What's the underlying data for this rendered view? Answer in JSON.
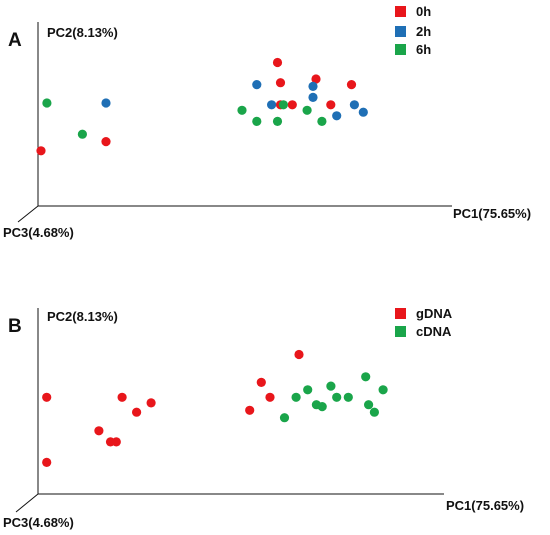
{
  "chart_data": [
    {
      "type": "scatter",
      "panel_label": "A",
      "xlabel": "PC1(75.65%)",
      "ylabel": "PC2(8.13%)",
      "zlabel": "PC3(4.68%)",
      "legend_position": "top-right",
      "grid": false,
      "series": [
        {
          "name": "0h",
          "color": "#e8161b",
          "points": [
            [
              40.5,
              7.8
            ],
            [
              41.0,
              6.7
            ],
            [
              47.0,
              6.9
            ],
            [
              53.0,
              6.6
            ],
            [
              43.0,
              5.5
            ],
            [
              49.5,
              5.5
            ],
            [
              41.0,
              5.5
            ],
            [
              0.5,
              3.0
            ],
            [
              11.5,
              3.5
            ]
          ]
        },
        {
          "name": "2h",
          "color": "#1f6fb5",
          "points": [
            [
              37.0,
              6.6
            ],
            [
              46.5,
              6.5
            ],
            [
              46.5,
              5.9
            ],
            [
              39.5,
              5.5
            ],
            [
              53.5,
              5.5
            ],
            [
              55.0,
              5.1
            ],
            [
              50.5,
              4.9
            ],
            [
              11.5,
              5.6
            ]
          ]
        },
        {
          "name": "6h",
          "color": "#1aa54a",
          "points": [
            [
              1.5,
              5.6
            ],
            [
              7.5,
              3.9
            ],
            [
              34.5,
              5.2
            ],
            [
              37.0,
              4.6
            ],
            [
              40.5,
              4.6
            ],
            [
              41.5,
              5.5
            ],
            [
              45.5,
              5.2
            ],
            [
              48.0,
              4.6
            ]
          ]
        }
      ]
    },
    {
      "type": "scatter",
      "panel_label": "B",
      "xlabel": "PC1(75.65%)",
      "ylabel": "PC2(8.13%)",
      "zlabel": "PC3(4.68%)",
      "legend_position": "top-right",
      "grid": false,
      "series": [
        {
          "name": "gDNA",
          "color": "#e8161b",
          "points": [
            [
              1.5,
              5.2
            ],
            [
              1.5,
              1.7
            ],
            [
              10.5,
              3.4
            ],
            [
              12.5,
              2.8
            ],
            [
              13.5,
              2.8
            ],
            [
              14.5,
              5.2
            ],
            [
              17.0,
              4.4
            ],
            [
              19.5,
              4.9
            ],
            [
              36.5,
              4.5
            ],
            [
              38.5,
              6.0
            ],
            [
              40.0,
              5.2
            ],
            [
              45.0,
              7.5
            ]
          ]
        },
        {
          "name": "cDNA",
          "color": "#1aa54a",
          "points": [
            [
              42.5,
              4.1
            ],
            [
              44.5,
              5.2
            ],
            [
              46.5,
              5.6
            ],
            [
              48.0,
              4.8
            ],
            [
              49.0,
              4.7
            ],
            [
              50.5,
              5.8
            ],
            [
              51.5,
              5.2
            ],
            [
              53.5,
              5.2
            ],
            [
              56.5,
              6.3
            ],
            [
              57.0,
              4.8
            ],
            [
              58.0,
              4.4
            ],
            [
              59.5,
              5.6
            ]
          ]
        }
      ]
    }
  ]
}
